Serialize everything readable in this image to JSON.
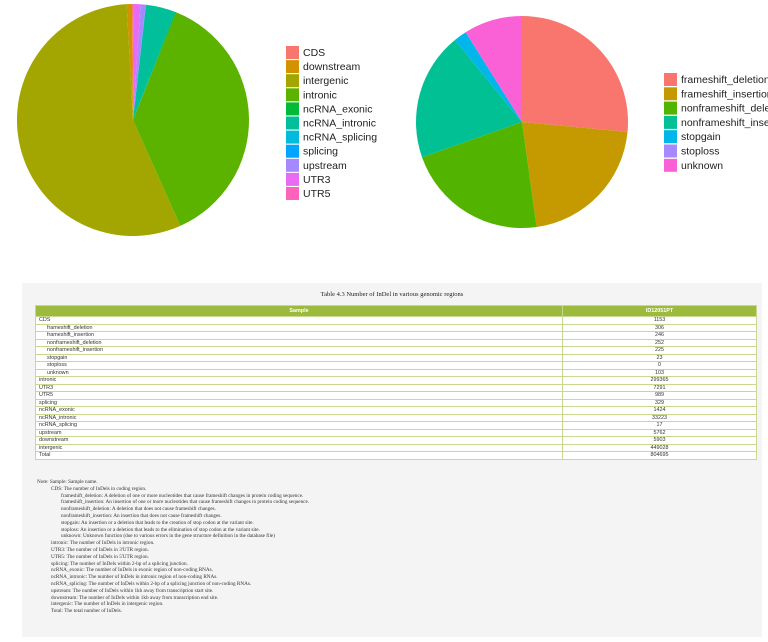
{
  "chart_data": [
    {
      "type": "pie",
      "title": "",
      "slices": [
        {
          "label": "CDS",
          "value": 1153,
          "color": "#F8766D"
        },
        {
          "label": "downstream",
          "value": 5903,
          "color": "#D39200"
        },
        {
          "label": "intergenic",
          "value": 449028,
          "color": "#A3A500"
        },
        {
          "label": "intronic",
          "value": 299365,
          "color": "#5BB300"
        },
        {
          "label": "ncRNA_exonic",
          "value": 1424,
          "color": "#00BA38"
        },
        {
          "label": "ncRNA_intronic",
          "value": 33223,
          "color": "#00BF9A"
        },
        {
          "label": "ncRNA_splicing",
          "value": 17,
          "color": "#00BBDB"
        },
        {
          "label": "splicing",
          "value": 329,
          "color": "#00A5FF"
        },
        {
          "label": "upstream",
          "value": 5762,
          "color": "#A58AFF"
        },
        {
          "label": "UTR3",
          "value": 7291,
          "color": "#E76BF3"
        },
        {
          "label": "UTR5",
          "value": 989,
          "color": "#FF62BC"
        }
      ],
      "legend_position": "right"
    },
    {
      "type": "pie",
      "title": "",
      "slices": [
        {
          "label": "frameshift_deletion",
          "value": 306,
          "color": "#F8766D"
        },
        {
          "label": "frameshift_insertion",
          "value": 246,
          "color": "#C49A00"
        },
        {
          "label": "nonframeshift_deletion",
          "value": 252,
          "color": "#53B400"
        },
        {
          "label": "nonframeshift_insertion",
          "value": 225,
          "color": "#00C094"
        },
        {
          "label": "stopgain",
          "value": 23,
          "color": "#00B6EB"
        },
        {
          "label": "stoploss",
          "value": 0,
          "color": "#A58AFF"
        },
        {
          "label": "unknown",
          "value": 103,
          "color": "#FB61D7"
        }
      ],
      "legend_position": "right"
    }
  ],
  "table": {
    "caption": "Table 4.3 Number of InDel in various genomic regions",
    "headers": [
      "Sample",
      "ID12051PT"
    ],
    "rows": [
      {
        "name": "CDS",
        "value": "1153",
        "indent": false
      },
      {
        "name": "frameshift_deletion",
        "value": "306",
        "indent": true
      },
      {
        "name": "frameshift_insertion",
        "value": "246",
        "indent": true
      },
      {
        "name": "nonframeshift_deletion",
        "value": "252",
        "indent": true
      },
      {
        "name": "nonframeshift_insertion",
        "value": "225",
        "indent": true
      },
      {
        "name": "stopgain",
        "value": "23",
        "indent": true
      },
      {
        "name": "stoploss",
        "value": "0",
        "indent": true
      },
      {
        "name": "unknown",
        "value": "103",
        "indent": true
      },
      {
        "name": "intronic",
        "value": "299365",
        "indent": false
      },
      {
        "name": "UTR3",
        "value": "7291",
        "indent": false
      },
      {
        "name": "UTR5",
        "value": "989",
        "indent": false
      },
      {
        "name": "splicing",
        "value": "329",
        "indent": false
      },
      {
        "name": "ncRNA_exonic",
        "value": "1424",
        "indent": false
      },
      {
        "name": "ncRNA_intronic",
        "value": "33223",
        "indent": false
      },
      {
        "name": "ncRNA_splicing",
        "value": "17",
        "indent": false
      },
      {
        "name": "upstream",
        "value": "5762",
        "indent": false
      },
      {
        "name": "downstream",
        "value": "5903",
        "indent": false
      },
      {
        "name": "intergenic",
        "value": "449028",
        "indent": false
      },
      {
        "name": "Total",
        "value": "804695",
        "indent": false
      }
    ]
  },
  "notes": [
    {
      "text": "Note: Sample: Sample name.",
      "level": 0
    },
    {
      "text": "CDS: The number of InDels in coding region.",
      "level": 1
    },
    {
      "text": "frameshift_deletion: A deletion of one or more nucleotides that cause frameshift changes in protein coding sequence.",
      "level": 2
    },
    {
      "text": "frameshift_insertion: An insertion of one or more nucleotides that cause frameshift changes in protein coding sequence.",
      "level": 2
    },
    {
      "text": "nonframeshift_deletion: A deletion that does not cause frameshift changes.",
      "level": 2
    },
    {
      "text": "nonframeshift_insertion: An insertion that does not cause frameshift changes.",
      "level": 2
    },
    {
      "text": "stopgain: An insertion or a deletion that leads to the creation of stop codon at the variant site.",
      "level": 2
    },
    {
      "text": "stoploss: An insertion or a deletion that leads to the elimination of stop codon at the variant site.",
      "level": 2
    },
    {
      "text": "unknown: Unknown function (due to various errors in the gene structure definition in the database file)",
      "level": 2
    },
    {
      "text": "intronic: The number of InDels in intronic region.",
      "level": 1
    },
    {
      "text": "UTR3: The number of InDels in 3'UTR region.",
      "level": 1
    },
    {
      "text": "UTR5: The number of InDels in 5'UTR region.",
      "level": 1
    },
    {
      "text": "splicing: The number of InDels within 2-bp of a splicing junction.",
      "level": 1
    },
    {
      "text": "ncRNA_exonic: The number of InDels in exonic region of non-coding RNAs.",
      "level": 1
    },
    {
      "text": "ncRNA_intronic: The number of InDels in intronic region of non-coding RNAs.",
      "level": 1
    },
    {
      "text": "ncRNA_splicing: The number of InDels within 2-bp of a splicing junction of non-coding RNAs.",
      "level": 1
    },
    {
      "text": "upstream: The number of InDels within 1kb away from transcription start site.",
      "level": 1
    },
    {
      "text": "downstream: The number of InDels within 1kb away from transcription end site.",
      "level": 1
    },
    {
      "text": "intergenic: The number of InDels in intergenic region.",
      "level": 1
    },
    {
      "text": "Total: The total number of InDels.",
      "level": 1
    }
  ]
}
